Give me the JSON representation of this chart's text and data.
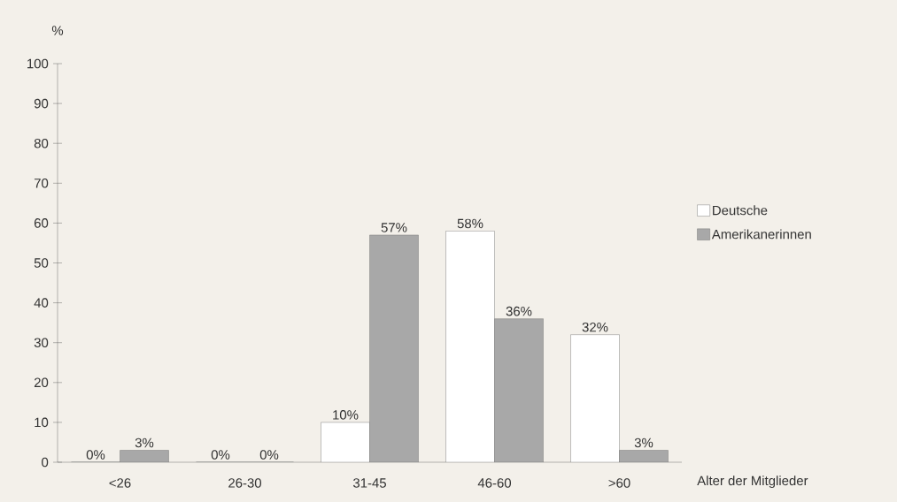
{
  "chart_data": {
    "type": "bar",
    "xlabel": "Alter der Mitglieder",
    "ylabel": "%",
    "categories": [
      "<26",
      "26-30",
      "31-45",
      "46-60",
      ">60"
    ],
    "series": [
      {
        "name": "Deutsche",
        "color": "#ffffff",
        "values": [
          0,
          0,
          10,
          58,
          32
        ],
        "value_labels": [
          "0%",
          "0%",
          "10%",
          "58%",
          "32%"
        ]
      },
      {
        "name": "Amerikanerinnen",
        "color": "#a8a8a8",
        "values": [
          3,
          0,
          57,
          36,
          3
        ],
        "value_labels": [
          "3%",
          "0%",
          "57%",
          "36%",
          "3%"
        ]
      }
    ],
    "ylim": [
      0,
      100
    ],
    "yticks": [
      0,
      10,
      20,
      30,
      40,
      50,
      60,
      70,
      80,
      90,
      100
    ],
    "grid": false,
    "legend": "right"
  }
}
